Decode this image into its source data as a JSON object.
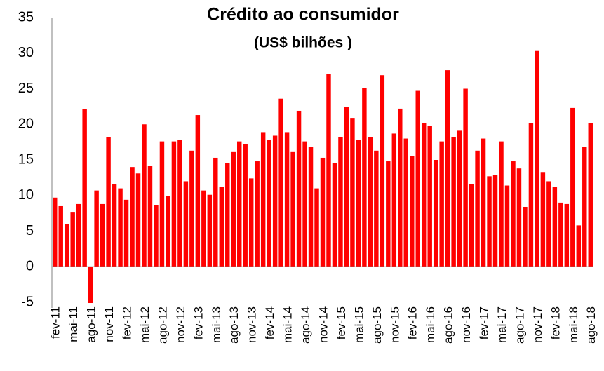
{
  "chart_data": {
    "type": "bar",
    "title": "Crédito ao consumidor",
    "subtitle": "(US$ bilhões )",
    "categories": [
      "fev-11",
      null,
      null,
      "mai-11",
      null,
      null,
      "ago-11",
      null,
      null,
      "nov-11",
      null,
      null,
      "fev-12",
      null,
      null,
      "mai-12",
      null,
      null,
      "ago-12",
      null,
      null,
      "nov-12",
      null,
      null,
      "fev-13",
      null,
      null,
      "mai-13",
      null,
      null,
      "ago-13",
      null,
      null,
      "nov-13",
      null,
      null,
      "fev-14",
      null,
      null,
      "mai-14",
      null,
      null,
      "ago-14",
      null,
      null,
      "nov-14",
      null,
      null,
      "fev-15",
      null,
      null,
      "mai-15",
      null,
      null,
      "ago-15",
      null,
      null,
      "nov-15",
      null,
      null,
      "fev-16",
      null,
      null,
      "mai-16",
      null,
      null,
      "ago-16",
      null,
      null,
      "nov-16",
      null,
      null,
      "fev-17",
      null,
      null,
      "mai-17",
      null,
      null,
      "ago-17",
      null,
      null,
      "nov-17",
      null,
      null,
      "fev-18",
      null,
      null,
      "mai-18",
      null,
      null,
      "ago-18"
    ],
    "values": [
      9.7,
      8.5,
      6.0,
      7.7,
      8.8,
      22.1,
      -5.1,
      10.7,
      8.8,
      18.2,
      11.6,
      11.0,
      9.4,
      14.0,
      13.1,
      20.0,
      14.2,
      8.6,
      17.6,
      9.9,
      17.6,
      17.8,
      12.0,
      16.3,
      21.3,
      10.7,
      10.1,
      15.3,
      11.2,
      14.6,
      16.1,
      17.6,
      17.2,
      12.4,
      14.8,
      18.9,
      17.8,
      18.4,
      23.6,
      18.9,
      16.1,
      21.9,
      17.6,
      16.8,
      11.0,
      15.3,
      27.1,
      14.6,
      18.2,
      22.4,
      20.9,
      17.8,
      25.1,
      18.2,
      16.3,
      26.9,
      14.8,
      18.7,
      22.2,
      18.0,
      15.5,
      24.7,
      20.2,
      19.8,
      15.0,
      17.6,
      27.6,
      18.2,
      19.1,
      25.0,
      11.6,
      16.3,
      18.0,
      12.7,
      12.9,
      17.6,
      11.4,
      14.8,
      13.8,
      8.4,
      20.2,
      30.3,
      13.3,
      12.0,
      11.2,
      9.0,
      8.8,
      22.3,
      5.8,
      16.8,
      20.2
    ],
    "color": "#ff0000",
    "ylim": [
      -5,
      35
    ],
    "yticks": [
      -5,
      0,
      5,
      10,
      15,
      20,
      25,
      30,
      35
    ],
    "grid": false
  }
}
